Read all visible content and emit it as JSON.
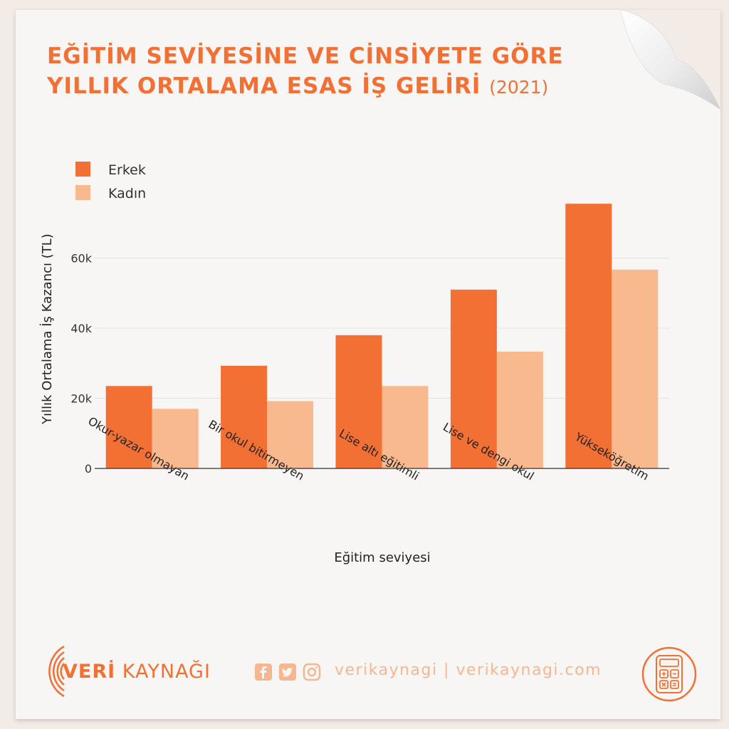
{
  "title": {
    "line1": "EĞİTİM SEVİYESİNE VE CİNSİYETE GÖRE",
    "line2": "YILLIK ORTALAMA ESAS İŞ GELİRİ",
    "year": "(2021)"
  },
  "footer": {
    "brand_prefix": "VERİ",
    "brand_suffix": " KAYNAĞI",
    "social_text": "verikaynagi | verikaynagi.com",
    "icons": [
      "facebook-icon",
      "twitter-icon",
      "instagram-icon",
      "calculator-icon"
    ]
  },
  "colors": {
    "erkek": "#f37034",
    "kadin": "#f8b98e",
    "accent": "#f37034"
  },
  "chart_data": {
    "type": "bar",
    "xlabel": "Eğitim seviyesi",
    "ylabel": "Yıllık Ortalama İş Kazancı (TL)",
    "categories": [
      "Okur-yazar olmayan",
      "Bir okul bitirmeyen",
      "Lise altı eğitimli",
      "Lise ve dengi okul",
      "Yükseköğretim"
    ],
    "series": [
      {
        "name": "Erkek",
        "values": [
          23500,
          29300,
          38000,
          51000,
          75500
        ]
      },
      {
        "name": "Kadın",
        "values": [
          17000,
          19200,
          23500,
          33300,
          56700
        ]
      }
    ],
    "yticks": [
      0,
      20000,
      40000,
      60000
    ],
    "ytick_labels": [
      "0",
      "20k",
      "40k",
      "60k"
    ],
    "ylim": [
      0,
      80000
    ],
    "grid": true,
    "legend_position": "top-left"
  }
}
